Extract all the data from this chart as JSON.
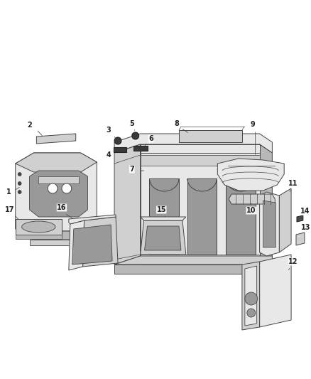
{
  "background_color": "#ffffff",
  "line_color": "#444444",
  "text_color": "#222222",
  "fig_width": 4.38,
  "fig_height": 5.33,
  "dpi": 100,
  "face_light": "#e8e8e8",
  "face_mid": "#d0d0d0",
  "face_dark": "#b8b8b8",
  "face_darker": "#999999",
  "face_hole": "#c0c0c0"
}
